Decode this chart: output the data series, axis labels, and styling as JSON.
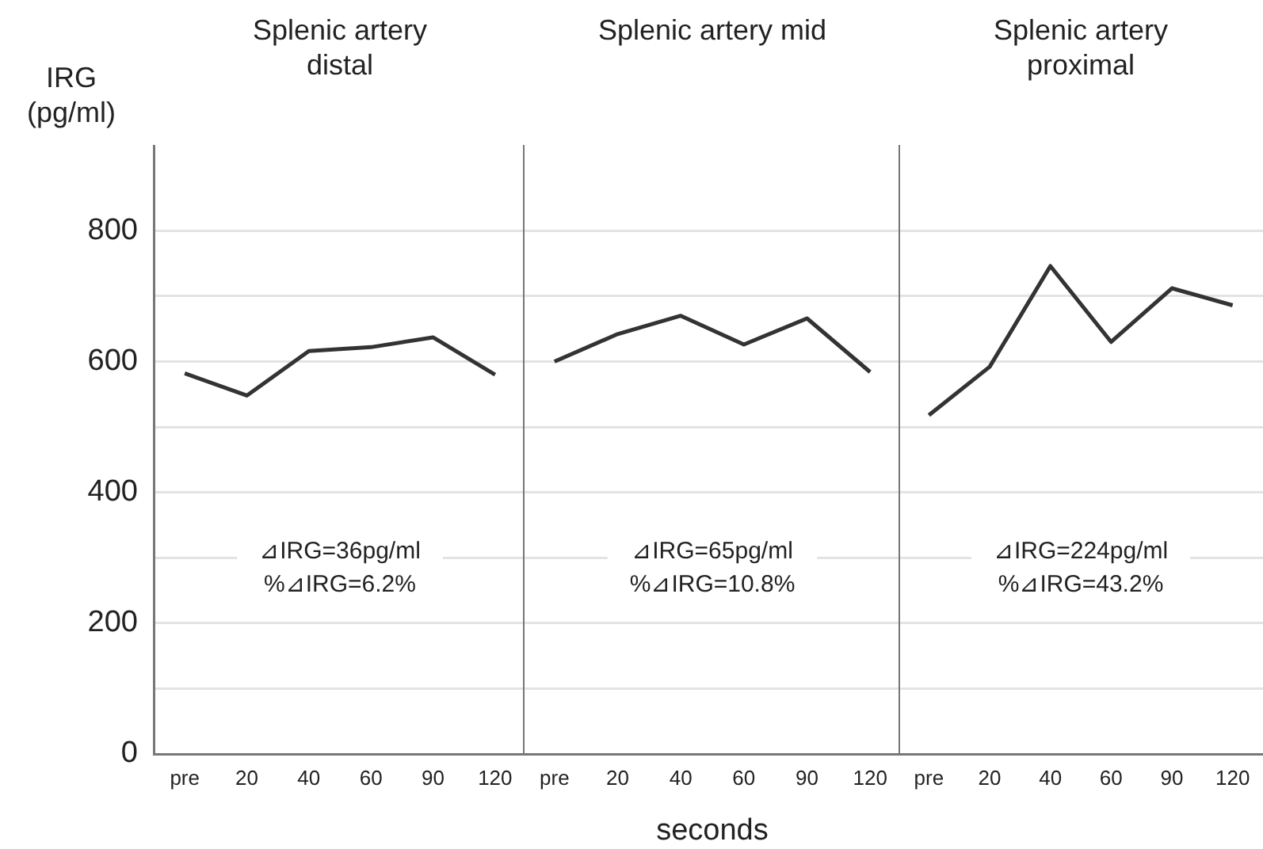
{
  "chart_data": [
    {
      "type": "line",
      "title": "Splenic artery distal",
      "ylabel": "IRG (pg/ml)",
      "categories": [
        "pre",
        "20",
        "40",
        "60",
        "90",
        "120"
      ],
      "series": [
        {
          "color": "#333333",
          "values": [
            582,
            548,
            616,
            622,
            637,
            580
          ]
        }
      ],
      "ylim": [
        0,
        930
      ],
      "yticks": [
        0,
        {
          "value": 100,
          "label": null
        },
        200,
        {
          "value": 300,
          "label": null
        },
        400,
        {
          "value": 500,
          "label": null
        },
        600,
        {
          "value": 700,
          "label": null
        },
        800
      ],
      "grid": "y",
      "marker": "none",
      "annotations": [
        "⊿IRG=36pg/ml",
        "%⊿IRG=6.2%"
      ]
    },
    {
      "type": "line",
      "title": "Splenic artery mid",
      "xlabel": "seconds",
      "categories": [
        "pre",
        "20",
        "40",
        "60",
        "90",
        "120"
      ],
      "series": [
        {
          "color": "#333333",
          "values": [
            600,
            642,
            670,
            626,
            666,
            584
          ]
        }
      ],
      "ylim": [
        0,
        930
      ],
      "yticks": [
        0,
        {
          "value": 100,
          "label": null
        },
        200,
        {
          "value": 300,
          "label": null
        },
        400,
        {
          "value": 500,
          "label": null
        },
        600,
        {
          "value": 700,
          "label": null
        },
        800
      ],
      "grid": "y",
      "marker": "none",
      "tick_labels": "x",
      "annotations": [
        "⊿IRG=65pg/ml",
        "%⊿IRG=10.8%"
      ]
    },
    {
      "type": "line",
      "title": "Splenic artery proximal",
      "categories": [
        "pre",
        "20",
        "40",
        "60",
        "90",
        "120"
      ],
      "series": [
        {
          "color": "#333333",
          "values": [
            518,
            592,
            746,
            630,
            712,
            686
          ]
        }
      ],
      "ylim": [
        0,
        930
      ],
      "yticks": [
        0,
        {
          "value": 100,
          "label": null
        },
        200,
        {
          "value": 300,
          "label": null
        },
        400,
        {
          "value": 500,
          "label": null
        },
        600,
        {
          "value": 700,
          "label": null
        },
        800
      ],
      "grid": "y",
      "marker": "none",
      "tick_labels": "x",
      "annotations": [
        "⊿IRG=224pg/ml",
        "%⊿IRG=43.2%"
      ]
    }
  ]
}
